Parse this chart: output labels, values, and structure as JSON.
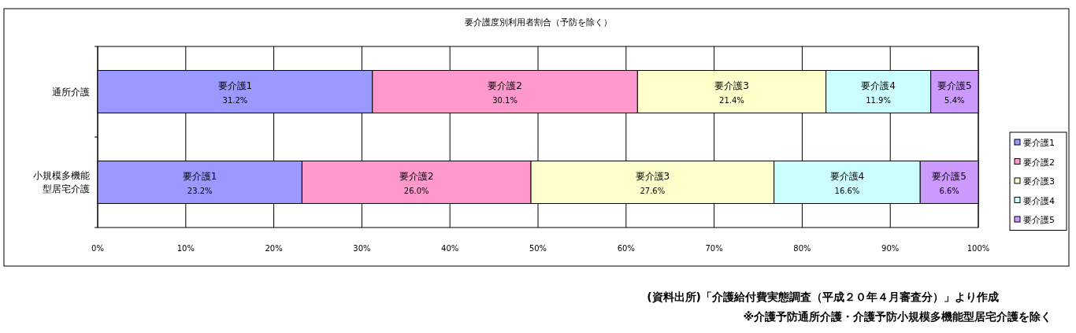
{
  "chart_data": {
    "type": "bar",
    "orientation": "horizontal",
    "stacked": true,
    "title": "要介護度別利用者割合（予防を除く）",
    "categories": [
      "通所介護",
      "小規模多機能型居宅介護"
    ],
    "series": [
      {
        "name": "要介護1",
        "color": "#9999ff",
        "values": [
          31.2,
          23.2
        ],
        "value_labels": [
          "31.2%",
          "23.2%"
        ]
      },
      {
        "name": "要介護2",
        "color": "#ff99cc",
        "values": [
          30.1,
          26.0
        ],
        "value_labels": [
          "30.1%",
          "26.0%"
        ]
      },
      {
        "name": "要介護3",
        "color": "#ffffcc",
        "values": [
          21.4,
          27.6
        ],
        "value_labels": [
          "21.4%",
          "27.6%"
        ]
      },
      {
        "name": "要介護4",
        "color": "#ccffff",
        "values": [
          11.9,
          16.6
        ],
        "value_labels": [
          "11.9%",
          "16.6%"
        ]
      },
      {
        "name": "要介護5",
        "color": "#cc99ff",
        "values": [
          5.4,
          6.6
        ],
        "value_labels": [
          "5.4%",
          "6.6%"
        ]
      }
    ],
    "xlim": [
      0,
      100
    ],
    "xticks": [
      {
        "value": 0,
        "label": "0%"
      },
      {
        "value": 10,
        "label": "10%"
      },
      {
        "value": 20,
        "label": "20%"
      },
      {
        "value": 30,
        "label": "30%"
      },
      {
        "value": 40,
        "label": "40%"
      },
      {
        "value": 50,
        "label": "50%"
      },
      {
        "value": 60,
        "label": "60%"
      },
      {
        "value": 70,
        "label": "70%"
      },
      {
        "value": 80,
        "label": "80%"
      },
      {
        "value": 90,
        "label": "90%"
      },
      {
        "value": 100,
        "label": "100%"
      }
    ],
    "grid": "x",
    "legend": "right",
    "annotations": [
      "(資料出所)「介護給付費実態調査（平成２０年４月審査分）」より作成",
      "※介護予防通所介護・介護予防小規模多機能型居宅介護を除く"
    ]
  }
}
